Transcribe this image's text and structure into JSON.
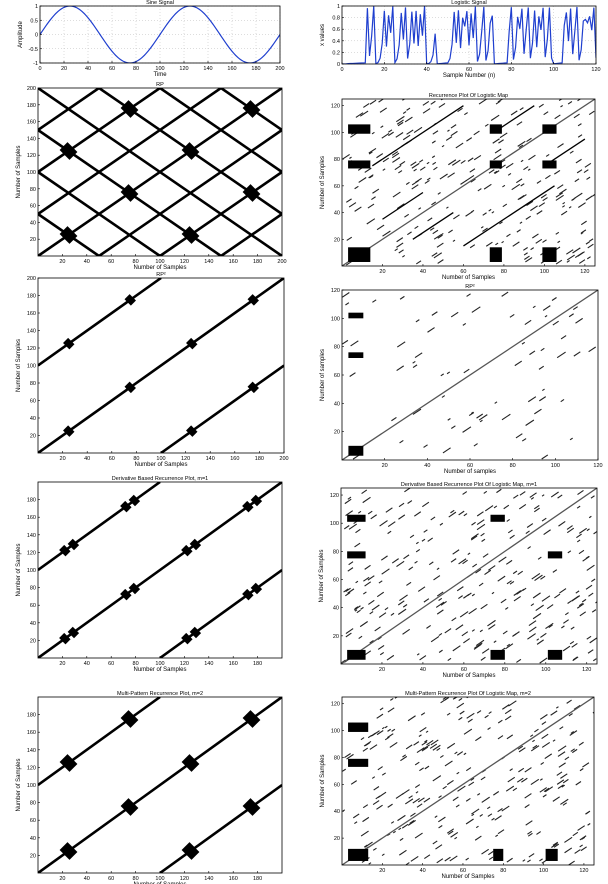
{
  "chart_data": [
    {
      "type": "line",
      "title": "Sine Signal",
      "xlabel": "Time",
      "ylabel": "Amplitude",
      "xlim": [
        0,
        200
      ],
      "ylim": [
        -1,
        1
      ],
      "x_ticks": [
        0,
        20,
        40,
        60,
        80,
        100,
        120,
        140,
        160,
        180,
        200
      ],
      "y_ticks": [
        -1,
        -0.5,
        0,
        0.5,
        1
      ],
      "series": [
        {
          "function": "sin(2*pi*x/100)",
          "x_range": [
            0,
            200
          ],
          "period": 100,
          "amplitude": 1,
          "color": "#1f3fcf"
        }
      ],
      "grid": true
    },
    {
      "type": "line",
      "title": "Logistic Signal",
      "xlabel": "Sample Number (n)",
      "ylabel": "x values",
      "xlim": [
        0,
        120
      ],
      "ylim": [
        0,
        1
      ],
      "x_ticks": [
        0,
        20,
        40,
        60,
        80,
        100,
        120
      ],
      "y_ticks": [
        0,
        0.2,
        0.4,
        0.6,
        0.8,
        1
      ],
      "series": [
        {
          "function": "logistic map x(n+1)=4x(n)(1-x(n)), near-zero laminar phases around n=0-10, 45-50, 72-78, 100-104",
          "x_range": [
            0,
            120
          ],
          "color": "#1f3fcf"
        }
      ],
      "grid": true
    },
    {
      "type": "scatter",
      "title": "RP",
      "xlabel": "Number of Samples",
      "ylabel": "Number of Samples",
      "xlim": [
        0,
        200
      ],
      "ylim": [
        0,
        200
      ],
      "x_ticks": [
        20,
        40,
        60,
        80,
        100,
        120,
        140,
        160,
        180,
        200
      ],
      "y_ticks": [
        20,
        40,
        60,
        80,
        100,
        120,
        140,
        160,
        180,
        200
      ],
      "lines": [
        {
          "x": [
            0,
            200
          ],
          "y": [
            0,
            200
          ]
        },
        {
          "x": [
            0,
            150
          ],
          "y": [
            50,
            200
          ]
        },
        {
          "x": [
            0,
            100
          ],
          "y": [
            100,
            200
          ]
        },
        {
          "x": [
            0,
            50
          ],
          "y": [
            150,
            200
          ]
        },
        {
          "x": [
            50,
            200
          ],
          "y": [
            0,
            150
          ]
        },
        {
          "x": [
            100,
            200
          ],
          "y": [
            0,
            100
          ]
        },
        {
          "x": [
            150,
            200
          ],
          "y": [
            0,
            50
          ]
        },
        {
          "x": [
            0,
            50
          ],
          "y": [
            50,
            0
          ]
        },
        {
          "x": [
            0,
            100
          ],
          "y": [
            100,
            0
          ]
        },
        {
          "x": [
            0,
            150
          ],
          "y": [
            150,
            0
          ]
        },
        {
          "x": [
            0,
            200
          ],
          "y": [
            200,
            0
          ]
        },
        {
          "x": [
            50,
            200
          ],
          "y": [
            200,
            50
          ]
        },
        {
          "x": [
            100,
            200
          ],
          "y": [
            200,
            100
          ]
        },
        {
          "x": [
            150,
            200
          ],
          "y": [
            200,
            150
          ]
        }
      ],
      "blobs": [
        {
          "x": 25,
          "y": 25
        },
        {
          "x": 125,
          "y": 25
        },
        {
          "x": 75,
          "y": 75
        },
        {
          "x": 175,
          "y": 75
        },
        {
          "x": 25,
          "y": 125
        },
        {
          "x": 125,
          "y": 125
        },
        {
          "x": 75,
          "y": 175
        },
        {
          "x": 175,
          "y": 175
        }
      ]
    },
    {
      "type": "scatter",
      "title": "Recurrence Plot Of Logistic Map",
      "xlabel": "Number of Samples",
      "ylabel": "Number of Samples",
      "xlim": [
        0,
        125
      ],
      "ylim": [
        0,
        125
      ],
      "x_ticks": [
        20,
        40,
        60,
        80,
        100,
        120
      ],
      "y_ticks": [
        20,
        40,
        60,
        80,
        100,
        120
      ],
      "lines": [
        {
          "x": [
            0,
            125
          ],
          "y": [
            0,
            125
          ],
          "color": "#555555"
        },
        {
          "x": [
            15,
            60
          ],
          "y": [
            75,
            120
          ]
        },
        {
          "x": [
            60,
            105
          ],
          "y": [
            15,
            60
          ]
        },
        {
          "x": [
            20,
            40
          ],
          "y": [
            35,
            55
          ]
        },
        {
          "x": [
            35,
            55
          ],
          "y": [
            20,
            40
          ]
        },
        {
          "x": [
            75,
            95
          ],
          "y": [
            100,
            120
          ]
        },
        {
          "x": [
            100,
            120
          ],
          "y": [
            75,
            95
          ]
        }
      ],
      "blocks": [
        {
          "x": [
            3,
            14
          ],
          "y": [
            3,
            14
          ]
        },
        {
          "x": [
            3,
            14
          ],
          "y": [
            73,
            79
          ]
        },
        {
          "x": [
            3,
            14
          ],
          "y": [
            99,
            106
          ]
        },
        {
          "x": [
            73,
            79
          ],
          "y": [
            3,
            14
          ]
        },
        {
          "x": [
            73,
            79
          ],
          "y": [
            73,
            79
          ]
        },
        {
          "x": [
            73,
            79
          ],
          "y": [
            99,
            106
          ]
        },
        {
          "x": [
            99,
            106
          ],
          "y": [
            3,
            14
          ]
        },
        {
          "x": [
            99,
            106
          ],
          "y": [
            73,
            79
          ]
        },
        {
          "x": [
            99,
            106
          ],
          "y": [
            99,
            106
          ]
        }
      ],
      "scattered_dashes": "many short diagonal recurrence segments throughout"
    },
    {
      "type": "scatter",
      "title": "RP²",
      "xlabel": "Number of Samples",
      "ylabel": "Number of Samples",
      "xlim": [
        0,
        200
      ],
      "ylim": [
        0,
        200
      ],
      "x_ticks": [
        20,
        40,
        60,
        80,
        100,
        120,
        140,
        160,
        180,
        200
      ],
      "y_ticks": [
        20,
        40,
        60,
        80,
        100,
        120,
        140,
        160,
        180,
        200
      ],
      "lines": [
        {
          "x": [
            0,
            200
          ],
          "y": [
            0,
            200
          ]
        },
        {
          "x": [
            0,
            100
          ],
          "y": [
            100,
            200
          ]
        },
        {
          "x": [
            100,
            200
          ],
          "y": [
            0,
            100
          ]
        }
      ],
      "blobs": [
        {
          "x": 25,
          "y": 25
        },
        {
          "x": 125,
          "y": 25
        },
        {
          "x": 75,
          "y": 75
        },
        {
          "x": 175,
          "y": 75
        },
        {
          "x": 25,
          "y": 125
        },
        {
          "x": 125,
          "y": 125
        },
        {
          "x": 75,
          "y": 175
        },
        {
          "x": 175,
          "y": 175
        }
      ]
    },
    {
      "type": "scatter",
      "title": "RP²",
      "xlabel": "Number of samples",
      "ylabel": "Number of samples",
      "xlim": [
        0,
        120
      ],
      "ylim": [
        0,
        120
      ],
      "x_ticks": [
        20,
        40,
        60,
        80,
        100,
        120
      ],
      "y_ticks": [
        20,
        40,
        60,
        80,
        100,
        120
      ],
      "lines": [
        {
          "x": [
            0,
            120
          ],
          "y": [
            0,
            120
          ],
          "color": "#555555"
        }
      ],
      "blocks": [
        {
          "x": [
            3,
            10
          ],
          "y": [
            3,
            10
          ]
        },
        {
          "x": [
            3,
            10
          ],
          "y": [
            72,
            76
          ]
        },
        {
          "x": [
            3,
            10
          ],
          "y": [
            100,
            104
          ]
        }
      ],
      "scattered_dashes": "sparse short diagonal recurrence segments"
    },
    {
      "type": "scatter",
      "title": "Derivative Based Recurrence Plot, m=1",
      "xlabel": "Number of Samples",
      "ylabel": "Number of Samples",
      "xlim": [
        0,
        200
      ],
      "ylim": [
        0,
        200
      ],
      "x_ticks": [
        20,
        40,
        60,
        80,
        100,
        120,
        140,
        160,
        180
      ],
      "y_ticks": [
        20,
        40,
        60,
        80,
        100,
        120,
        140,
        160,
        180
      ],
      "lines": [
        {
          "x": [
            0,
            200
          ],
          "y": [
            0,
            200
          ]
        },
        {
          "x": [
            0,
            100
          ],
          "y": [
            100,
            200
          ]
        },
        {
          "x": [
            100,
            200
          ],
          "y": [
            0,
            100
          ]
        }
      ],
      "blobs": [
        {
          "x": 22,
          "y": 22
        },
        {
          "x": 29,
          "y": 29
        },
        {
          "x": 72,
          "y": 72
        },
        {
          "x": 79,
          "y": 79
        },
        {
          "x": 122,
          "y": 122
        },
        {
          "x": 129,
          "y": 129
        },
        {
          "x": 172,
          "y": 172
        },
        {
          "x": 179,
          "y": 179
        },
        {
          "x": 22,
          "y": 122
        },
        {
          "x": 29,
          "y": 129
        },
        {
          "x": 72,
          "y": 172
        },
        {
          "x": 79,
          "y": 179
        },
        {
          "x": 122,
          "y": 22
        },
        {
          "x": 129,
          "y": 29
        },
        {
          "x": 172,
          "y": 72
        },
        {
          "x": 179,
          "y": 79
        }
      ]
    },
    {
      "type": "scatter",
      "title": "Derivative Based Recurrence Plot Of Logistic Map, m=1",
      "xlabel": "Number of Samples",
      "ylabel": "Number of Samples",
      "xlim": [
        0,
        125
      ],
      "ylim": [
        0,
        125
      ],
      "x_ticks": [
        20,
        40,
        60,
        80,
        100,
        120
      ],
      "y_ticks": [
        20,
        40,
        60,
        80,
        100,
        120
      ],
      "lines": [
        {
          "x": [
            0,
            125
          ],
          "y": [
            0,
            125
          ],
          "color": "#555555"
        }
      ],
      "blocks": [
        {
          "x": [
            3,
            12
          ],
          "y": [
            3,
            10
          ]
        },
        {
          "x": [
            3,
            12
          ],
          "y": [
            75,
            80
          ]
        },
        {
          "x": [
            3,
            12
          ],
          "y": [
            101,
            106
          ]
        },
        {
          "x": [
            73,
            80
          ],
          "y": [
            3,
            10
          ]
        },
        {
          "x": [
            73,
            80
          ],
          "y": [
            101,
            106
          ]
        },
        {
          "x": [
            101,
            108
          ],
          "y": [
            3,
            10
          ]
        },
        {
          "x": [
            101,
            108
          ],
          "y": [
            75,
            80
          ]
        }
      ],
      "scattered_dashes": "many short diagonal recurrence segments throughout"
    },
    {
      "type": "scatter",
      "title": "Multi-Pattern Recurrence Plot, m=2",
      "xlabel": "Number of Samples",
      "ylabel": "Number of Samples",
      "xlim": [
        0,
        200
      ],
      "ylim": [
        0,
        200
      ],
      "x_ticks": [
        20,
        40,
        60,
        80,
        100,
        120,
        140,
        160,
        180
      ],
      "y_ticks": [
        20,
        40,
        60,
        80,
        100,
        120,
        140,
        160,
        180
      ],
      "lines": [
        {
          "x": [
            0,
            200
          ],
          "y": [
            0,
            200
          ]
        },
        {
          "x": [
            0,
            100
          ],
          "y": [
            100,
            200
          ]
        },
        {
          "x": [
            100,
            200
          ],
          "y": [
            0,
            100
          ]
        }
      ],
      "blobs": [
        {
          "x": 25,
          "y": 25
        },
        {
          "x": 125,
          "y": 25
        },
        {
          "x": 75,
          "y": 75
        },
        {
          "x": 175,
          "y": 75
        },
        {
          "x": 25,
          "y": 125
        },
        {
          "x": 125,
          "y": 125
        },
        {
          "x": 75,
          "y": 175
        },
        {
          "x": 175,
          "y": 175
        }
      ]
    },
    {
      "type": "scatter",
      "title": "Multi-Pattern Recurrence Plot Of Logistic Map, m=2",
      "xlabel": "Number of Samples",
      "ylabel": "Number of Samples",
      "xlim": [
        0,
        125
      ],
      "ylim": [
        0,
        125
      ],
      "x_ticks": [
        20,
        40,
        60,
        80,
        100,
        120
      ],
      "y_ticks": [
        20,
        40,
        60,
        80,
        100,
        120
      ],
      "lines": [
        {
          "x": [
            0,
            125
          ],
          "y": [
            0,
            125
          ],
          "color": "#555555"
        }
      ],
      "blocks": [
        {
          "x": [
            3,
            13
          ],
          "y": [
            3,
            12
          ]
        },
        {
          "x": [
            3,
            13
          ],
          "y": [
            73,
            79
          ]
        },
        {
          "x": [
            3,
            13
          ],
          "y": [
            99,
            106
          ]
        },
        {
          "x": [
            75,
            80
          ],
          "y": [
            3,
            12
          ]
        },
        {
          "x": [
            101,
            107
          ],
          "y": [
            3,
            12
          ]
        }
      ],
      "scattered_dashes": "many short diagonal recurrence segments throughout"
    }
  ]
}
